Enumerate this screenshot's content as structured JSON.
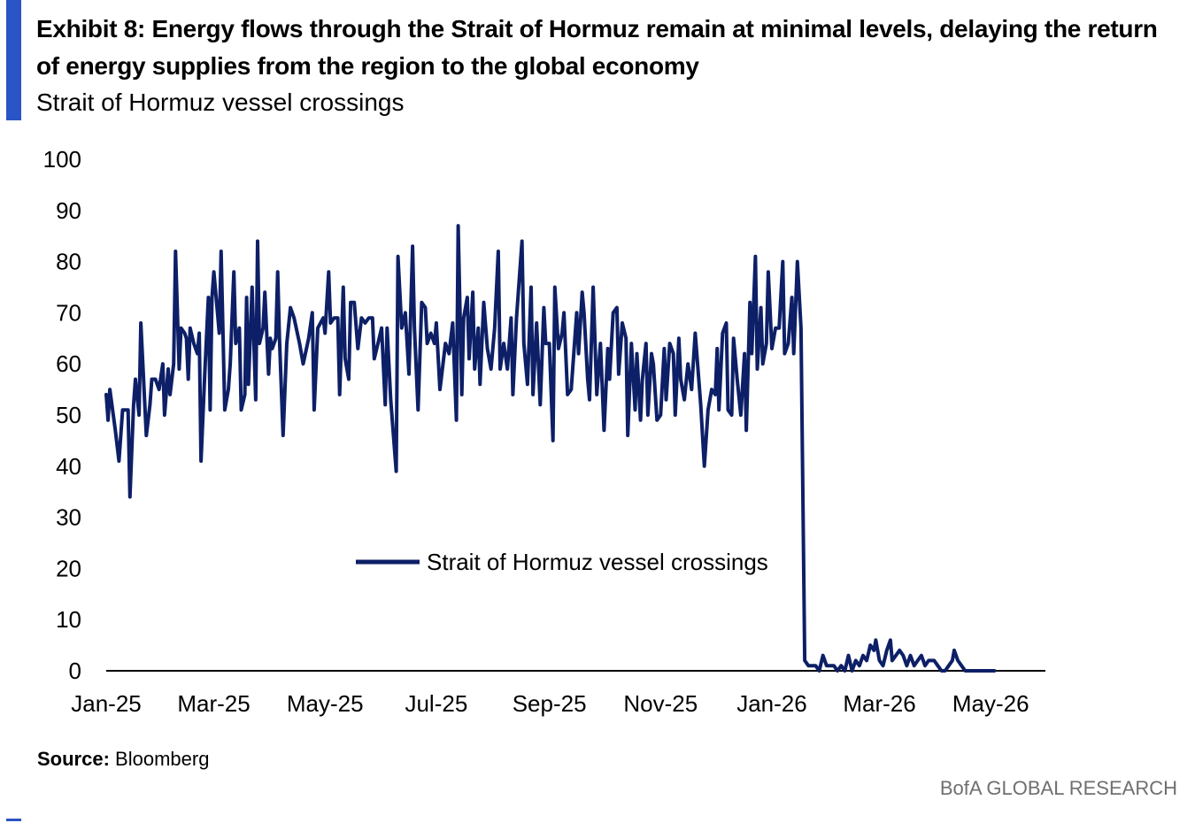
{
  "header": {
    "title": "Exhibit 8: Energy flows through the Strait of Hormuz remain at minimal levels, delaying the return of energy supplies from the region to the global economy",
    "subtitle": "Strait of Hormuz vessel crossings"
  },
  "footer": {
    "source_label": "Source:",
    "source_text": " Bloomberg",
    "brand": "BofA GLOBAL RESEARCH"
  },
  "colors": {
    "accent": "#2b55c6",
    "series": "#0d1f66",
    "axis": "#000000"
  },
  "chart_data": {
    "type": "line",
    "title": "",
    "xlabel": "",
    "ylabel": "",
    "ylim": [
      0,
      100
    ],
    "yticks": [
      0,
      10,
      20,
      30,
      40,
      50,
      60,
      70,
      80,
      90,
      100
    ],
    "xlim": [
      "2025-01-01",
      "2026-05-31"
    ],
    "xticks": [
      {
        "date": "2025-01-01",
        "label": "Jan-25"
      },
      {
        "date": "2025-03-01",
        "label": "Mar-25"
      },
      {
        "date": "2025-05-01",
        "label": "May-25"
      },
      {
        "date": "2025-07-01",
        "label": "Jul-25"
      },
      {
        "date": "2025-09-01",
        "label": "Sep-25"
      },
      {
        "date": "2025-11-01",
        "label": "Nov-25"
      },
      {
        "date": "2026-01-01",
        "label": "Jan-26"
      },
      {
        "date": "2026-03-01",
        "label": "Mar-26"
      },
      {
        "date": "2026-05-01",
        "label": "May-26"
      }
    ],
    "grid": false,
    "legend": "center",
    "series": [
      {
        "name": "Strait of Hormuz vessel crossings",
        "points": [
          [
            "2025-01-01",
            54
          ],
          [
            "2025-01-02",
            49
          ],
          [
            "2025-01-03",
            55
          ],
          [
            "2025-01-06",
            47
          ],
          [
            "2025-01-08",
            41
          ],
          [
            "2025-01-10",
            51
          ],
          [
            "2025-01-13",
            51
          ],
          [
            "2025-01-14",
            34
          ],
          [
            "2025-01-16",
            52
          ],
          [
            "2025-01-17",
            57
          ],
          [
            "2025-01-19",
            50
          ],
          [
            "2025-01-20",
            68
          ],
          [
            "2025-01-23",
            46
          ],
          [
            "2025-01-25",
            52
          ],
          [
            "2025-01-26",
            57
          ],
          [
            "2025-01-28",
            57
          ],
          [
            "2025-01-30",
            55
          ],
          [
            "2025-02-01",
            60
          ],
          [
            "2025-02-02",
            50
          ],
          [
            "2025-02-04",
            59
          ],
          [
            "2025-02-05",
            54
          ],
          [
            "2025-02-07",
            60
          ],
          [
            "2025-02-08",
            82
          ],
          [
            "2025-02-10",
            59
          ],
          [
            "2025-02-11",
            67
          ],
          [
            "2025-02-13",
            66
          ],
          [
            "2025-02-14",
            65
          ],
          [
            "2025-02-15",
            57
          ],
          [
            "2025-02-16",
            67
          ],
          [
            "2025-02-18",
            64
          ],
          [
            "2025-02-20",
            62
          ],
          [
            "2025-02-21",
            66
          ],
          [
            "2025-02-22",
            41
          ],
          [
            "2025-02-24",
            58
          ],
          [
            "2025-02-26",
            73
          ],
          [
            "2025-02-27",
            51
          ],
          [
            "2025-02-28",
            73
          ],
          [
            "2025-03-01",
            78
          ],
          [
            "2025-03-03",
            70
          ],
          [
            "2025-03-04",
            66
          ],
          [
            "2025-03-05",
            82
          ],
          [
            "2025-03-07",
            51
          ],
          [
            "2025-03-09",
            55
          ],
          [
            "2025-03-10",
            60
          ],
          [
            "2025-03-12",
            78
          ],
          [
            "2025-03-13",
            64
          ],
          [
            "2025-03-15",
            67
          ],
          [
            "2025-03-16",
            51
          ],
          [
            "2025-03-18",
            54
          ],
          [
            "2025-03-19",
            73
          ],
          [
            "2025-03-20",
            56
          ],
          [
            "2025-03-22",
            75
          ],
          [
            "2025-03-24",
            53
          ],
          [
            "2025-03-25",
            84
          ],
          [
            "2025-03-26",
            64
          ],
          [
            "2025-03-28",
            67
          ],
          [
            "2025-03-29",
            74
          ],
          [
            "2025-03-31",
            58
          ],
          [
            "2025-04-01",
            65
          ],
          [
            "2025-04-02",
            63
          ],
          [
            "2025-04-04",
            65
          ],
          [
            "2025-04-05",
            78
          ],
          [
            "2025-04-06",
            65
          ],
          [
            "2025-04-08",
            46
          ],
          [
            "2025-04-10",
            64
          ],
          [
            "2025-04-12",
            71
          ],
          [
            "2025-04-14",
            69
          ],
          [
            "2025-04-17",
            64
          ],
          [
            "2025-04-19",
            60
          ],
          [
            "2025-04-22",
            65
          ],
          [
            "2025-04-24",
            70
          ],
          [
            "2025-04-25",
            51
          ],
          [
            "2025-04-27",
            67
          ],
          [
            "2025-04-30",
            69
          ],
          [
            "2025-05-01",
            66
          ],
          [
            "2025-05-03",
            78
          ],
          [
            "2025-05-04",
            68
          ],
          [
            "2025-05-06",
            69
          ],
          [
            "2025-05-08",
            69
          ],
          [
            "2025-05-09",
            54
          ],
          [
            "2025-05-11",
            75
          ],
          [
            "2025-05-12",
            61
          ],
          [
            "2025-05-14",
            57
          ],
          [
            "2025-05-15",
            72
          ],
          [
            "2025-05-17",
            72
          ],
          [
            "2025-05-19",
            63
          ],
          [
            "2025-05-21",
            69
          ],
          [
            "2025-05-23",
            68
          ],
          [
            "2025-05-25",
            69
          ],
          [
            "2025-05-27",
            69
          ],
          [
            "2025-05-28",
            61
          ],
          [
            "2025-05-30",
            64
          ],
          [
            "2025-06-01",
            67
          ],
          [
            "2025-06-03",
            52
          ],
          [
            "2025-06-04",
            67
          ],
          [
            "2025-06-06",
            53
          ],
          [
            "2025-06-09",
            39
          ],
          [
            "2025-06-10",
            81
          ],
          [
            "2025-06-12",
            67
          ],
          [
            "2025-06-14",
            70
          ],
          [
            "2025-06-16",
            58
          ],
          [
            "2025-06-18",
            83
          ],
          [
            "2025-06-19",
            67
          ],
          [
            "2025-06-21",
            51
          ],
          [
            "2025-06-23",
            72
          ],
          [
            "2025-06-25",
            71
          ],
          [
            "2025-06-26",
            64
          ],
          [
            "2025-06-28",
            66
          ],
          [
            "2025-06-30",
            64
          ],
          [
            "2025-07-01",
            68
          ],
          [
            "2025-07-03",
            55
          ],
          [
            "2025-07-04",
            58
          ],
          [
            "2025-07-06",
            64
          ],
          [
            "2025-07-08",
            62
          ],
          [
            "2025-07-10",
            68
          ],
          [
            "2025-07-12",
            49
          ],
          [
            "2025-07-13",
            87
          ],
          [
            "2025-07-15",
            54
          ],
          [
            "2025-07-16",
            69
          ],
          [
            "2025-07-18",
            73
          ],
          [
            "2025-07-19",
            61
          ],
          [
            "2025-07-21",
            74
          ],
          [
            "2025-07-22",
            59
          ],
          [
            "2025-07-24",
            67
          ],
          [
            "2025-07-25",
            56
          ],
          [
            "2025-07-27",
            72
          ],
          [
            "2025-07-29",
            63
          ],
          [
            "2025-07-31",
            59
          ],
          [
            "2025-08-02",
            67
          ],
          [
            "2025-08-04",
            82
          ],
          [
            "2025-08-05",
            59
          ],
          [
            "2025-08-07",
            64
          ],
          [
            "2025-08-09",
            59
          ],
          [
            "2025-08-11",
            69
          ],
          [
            "2025-08-12",
            54
          ],
          [
            "2025-08-14",
            69
          ],
          [
            "2025-08-17",
            84
          ],
          [
            "2025-08-18",
            64
          ],
          [
            "2025-08-20",
            56
          ],
          [
            "2025-08-22",
            75
          ],
          [
            "2025-08-23",
            54
          ],
          [
            "2025-08-25",
            68
          ],
          [
            "2025-08-27",
            52
          ],
          [
            "2025-08-29",
            71
          ],
          [
            "2025-08-30",
            64
          ],
          [
            "2025-09-01",
            64
          ],
          [
            "2025-09-03",
            45
          ],
          [
            "2025-09-04",
            75
          ],
          [
            "2025-09-06",
            63
          ],
          [
            "2025-09-08",
            66
          ],
          [
            "2025-09-09",
            70
          ],
          [
            "2025-09-11",
            54
          ],
          [
            "2025-09-13",
            55
          ],
          [
            "2025-09-16",
            70
          ],
          [
            "2025-09-17",
            62
          ],
          [
            "2025-09-19",
            74
          ],
          [
            "2025-09-20",
            70
          ],
          [
            "2025-09-22",
            57
          ],
          [
            "2025-09-23",
            53
          ],
          [
            "2025-09-25",
            75
          ],
          [
            "2025-09-27",
            54
          ],
          [
            "2025-09-29",
            64
          ],
          [
            "2025-10-01",
            47
          ],
          [
            "2025-10-03",
            63
          ],
          [
            "2025-10-04",
            57
          ],
          [
            "2025-10-06",
            70
          ],
          [
            "2025-10-08",
            71
          ],
          [
            "2025-10-09",
            58
          ],
          [
            "2025-10-11",
            68
          ],
          [
            "2025-10-13",
            65
          ],
          [
            "2025-10-14",
            46
          ],
          [
            "2025-10-16",
            64
          ],
          [
            "2025-10-18",
            51
          ],
          [
            "2025-10-19",
            62
          ],
          [
            "2025-10-21",
            49
          ],
          [
            "2025-10-22",
            57
          ],
          [
            "2025-10-24",
            64
          ],
          [
            "2025-10-25",
            50
          ],
          [
            "2025-10-27",
            62
          ],
          [
            "2025-10-28",
            60
          ],
          [
            "2025-10-30",
            49
          ],
          [
            "2025-11-01",
            50
          ],
          [
            "2025-11-03",
            63
          ],
          [
            "2025-11-04",
            53
          ],
          [
            "2025-11-06",
            64
          ],
          [
            "2025-11-08",
            62
          ],
          [
            "2025-11-09",
            50
          ],
          [
            "2025-11-11",
            65
          ],
          [
            "2025-11-12",
            57
          ],
          [
            "2025-11-14",
            53
          ],
          [
            "2025-11-16",
            60
          ],
          [
            "2025-11-18",
            55
          ],
          [
            "2025-11-20",
            66
          ],
          [
            "2025-11-23",
            52
          ],
          [
            "2025-11-25",
            40
          ],
          [
            "2025-11-27",
            51
          ],
          [
            "2025-11-29",
            55
          ],
          [
            "2025-12-01",
            54
          ],
          [
            "2025-12-02",
            63
          ],
          [
            "2025-12-03",
            51
          ],
          [
            "2025-12-05",
            66
          ],
          [
            "2025-12-07",
            68
          ],
          [
            "2025-12-08",
            51
          ],
          [
            "2025-12-10",
            50
          ],
          [
            "2025-12-11",
            65
          ],
          [
            "2025-12-13",
            57
          ],
          [
            "2025-12-15",
            50
          ],
          [
            "2025-12-17",
            62
          ],
          [
            "2025-12-18",
            47
          ],
          [
            "2025-12-20",
            72
          ],
          [
            "2025-12-21",
            62
          ],
          [
            "2025-12-23",
            81
          ],
          [
            "2025-12-24",
            59
          ],
          [
            "2025-12-26",
            71
          ],
          [
            "2025-12-27",
            60
          ],
          [
            "2025-12-29",
            64
          ],
          [
            "2025-12-30",
            78
          ],
          [
            "2026-01-01",
            63
          ],
          [
            "2026-01-03",
            67
          ],
          [
            "2026-01-05",
            67
          ],
          [
            "2026-01-07",
            80
          ],
          [
            "2026-01-08",
            62
          ],
          [
            "2026-01-10",
            64
          ],
          [
            "2026-01-12",
            73
          ],
          [
            "2026-01-13",
            62
          ],
          [
            "2026-01-15",
            80
          ],
          [
            "2026-01-17",
            67
          ],
          [
            "2026-01-19",
            2
          ],
          [
            "2026-01-21",
            1
          ],
          [
            "2026-01-23",
            1
          ],
          [
            "2026-01-25",
            1
          ],
          [
            "2026-01-27",
            0
          ],
          [
            "2026-01-29",
            3
          ],
          [
            "2026-01-31",
            1
          ],
          [
            "2026-02-02",
            1
          ],
          [
            "2026-02-04",
            1
          ],
          [
            "2026-02-06",
            0
          ],
          [
            "2026-02-08",
            1
          ],
          [
            "2026-02-10",
            0
          ],
          [
            "2026-02-12",
            3
          ],
          [
            "2026-02-14",
            0
          ],
          [
            "2026-02-16",
            2
          ],
          [
            "2026-02-18",
            1
          ],
          [
            "2026-02-20",
            3
          ],
          [
            "2026-02-22",
            2
          ],
          [
            "2026-02-24",
            5
          ],
          [
            "2026-02-26",
            4
          ],
          [
            "2026-02-27",
            6
          ],
          [
            "2026-03-01",
            2
          ],
          [
            "2026-03-03",
            1
          ],
          [
            "2026-03-05",
            4
          ],
          [
            "2026-03-07",
            6
          ],
          [
            "2026-03-08",
            2
          ],
          [
            "2026-03-10",
            3
          ],
          [
            "2026-03-12",
            4
          ],
          [
            "2026-03-14",
            3
          ],
          [
            "2026-03-16",
            1
          ],
          [
            "2026-03-18",
            3
          ],
          [
            "2026-03-20",
            1
          ],
          [
            "2026-03-22",
            2
          ],
          [
            "2026-03-24",
            3
          ],
          [
            "2026-03-26",
            1
          ],
          [
            "2026-03-28",
            2
          ],
          [
            "2026-03-31",
            2
          ],
          [
            "2026-04-02",
            1
          ],
          [
            "2026-04-04",
            0
          ],
          [
            "2026-04-06",
            0
          ],
          [
            "2026-04-08",
            1
          ],
          [
            "2026-04-10",
            2
          ],
          [
            "2026-04-11",
            4
          ],
          [
            "2026-04-13",
            2
          ],
          [
            "2026-04-15",
            1
          ],
          [
            "2026-04-17",
            0
          ],
          [
            "2026-05-03",
            0
          ]
        ]
      }
    ]
  }
}
